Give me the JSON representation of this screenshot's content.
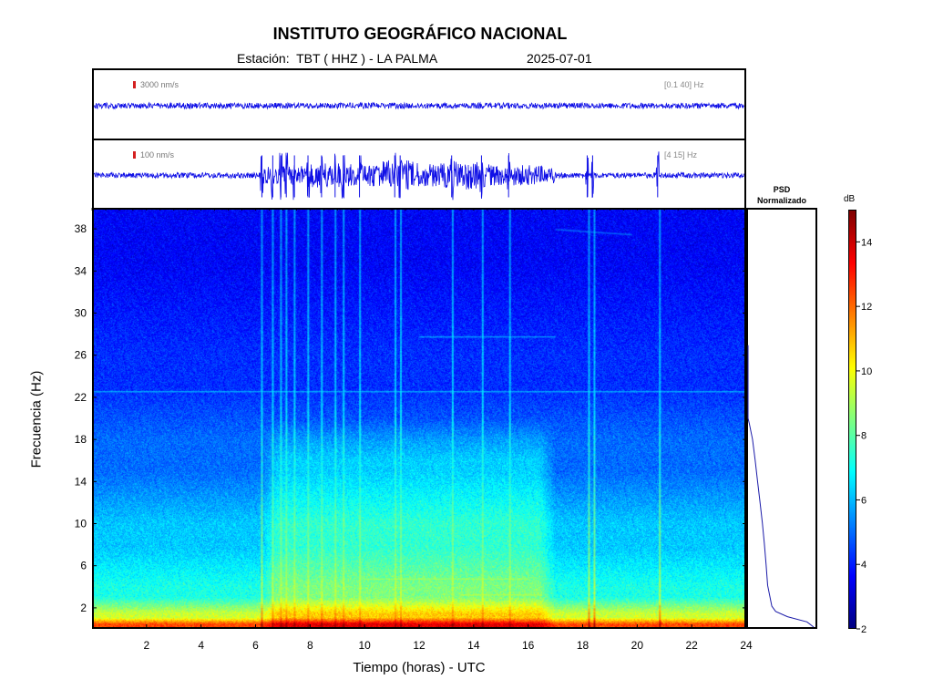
{
  "header": {
    "title": "INSTITUTO GEOGRÁFICO NACIONAL",
    "station_label": "Estación:  TBT ( HHZ ) - LA PALMA",
    "date": "2025-07-01"
  },
  "traces": [
    {
      "scale_label": "3000 nm/s",
      "filter_label": "[0.1 40] Hz",
      "color": "#1010e6"
    },
    {
      "scale_label": "100 nm/s",
      "filter_label": "[4 15] Hz",
      "color": "#1010e6"
    }
  ],
  "psd": {
    "title_line1": "PSD",
    "title_line2": "Normalizado"
  },
  "colorbar": {
    "unit": "dB",
    "min": 2,
    "max": 15,
    "ticks": [
      2,
      4,
      6,
      8,
      10,
      12,
      14
    ],
    "colormap": "jet"
  },
  "chart_data": {
    "type": "heatmap",
    "title": "INSTITUTO GEOGRÁFICO NACIONAL",
    "xlabel": "Tiempo (horas) - UTC",
    "ylabel": "Frecuencia  (Hz)",
    "xlim": [
      0,
      24
    ],
    "ylim": [
      0,
      40
    ],
    "x_ticks": [
      2,
      4,
      6,
      8,
      10,
      12,
      14,
      16,
      18,
      20,
      22,
      24
    ],
    "y_ticks": [
      2,
      6,
      10,
      14,
      18,
      22,
      26,
      30,
      34,
      38
    ],
    "value_range_db": [
      2,
      15
    ],
    "background_levels": [
      {
        "freq_max": 0.5,
        "db": 12.5
      },
      {
        "freq_max": 1.5,
        "db": 9.5
      },
      {
        "freq_max": 4,
        "db": 7.2
      },
      {
        "freq_max": 10,
        "db": 6.2
      },
      {
        "freq_max": 18,
        "db": 5.0
      },
      {
        "freq_max": 26,
        "db": 4.2
      },
      {
        "freq_max": 40,
        "db": 3.6
      }
    ],
    "noisy_period": {
      "start_h": 6.2,
      "end_h": 17.0,
      "extra_db": 1.3,
      "freq_max": 20
    },
    "transients_h": [
      6.2,
      6.6,
      6.9,
      7.1,
      7.4,
      7.9,
      8.4,
      8.9,
      9.2,
      9.8,
      11.1,
      11.3,
      13.2,
      14.3,
      15.3,
      18.2,
      18.4,
      20.8
    ],
    "tonal_lines": [
      {
        "from_h": 17.0,
        "to_h": 19.8,
        "f_start": 38.0,
        "f_end": 37.5
      },
      {
        "from_h": 0.0,
        "to_h": 24.0,
        "f_start": 22.6,
        "f_end": 22.6
      },
      {
        "from_h": 12.0,
        "to_h": 17.0,
        "f_start": 27.8,
        "f_end": 27.8
      },
      {
        "from_h": 10.0,
        "to_h": 16.0,
        "f_start": 4.8,
        "f_end": 4.8
      },
      {
        "from_h": 13.5,
        "to_h": 16.5,
        "f_start": 3.3,
        "f_end": 3.3
      }
    ],
    "psd_curve": [
      {
        "f": 0,
        "p": 1.0
      },
      {
        "f": 0.5,
        "p": 0.9
      },
      {
        "f": 1,
        "p": 0.6
      },
      {
        "f": 1.5,
        "p": 0.42
      },
      {
        "f": 2,
        "p": 0.36
      },
      {
        "f": 4,
        "p": 0.3
      },
      {
        "f": 6,
        "p": 0.27
      },
      {
        "f": 8,
        "p": 0.24
      },
      {
        "f": 10,
        "p": 0.22
      },
      {
        "f": 12,
        "p": 0.18
      },
      {
        "f": 14,
        "p": 0.15
      },
      {
        "f": 16,
        "p": 0.11
      },
      {
        "f": 18,
        "p": 0.07
      },
      {
        "f": 19.5,
        "p": 0.02
      },
      {
        "f": 20,
        "p": 0.0
      },
      {
        "f": 26,
        "p": 0.0
      },
      {
        "f": 27,
        "p": 0.0
      }
    ]
  }
}
